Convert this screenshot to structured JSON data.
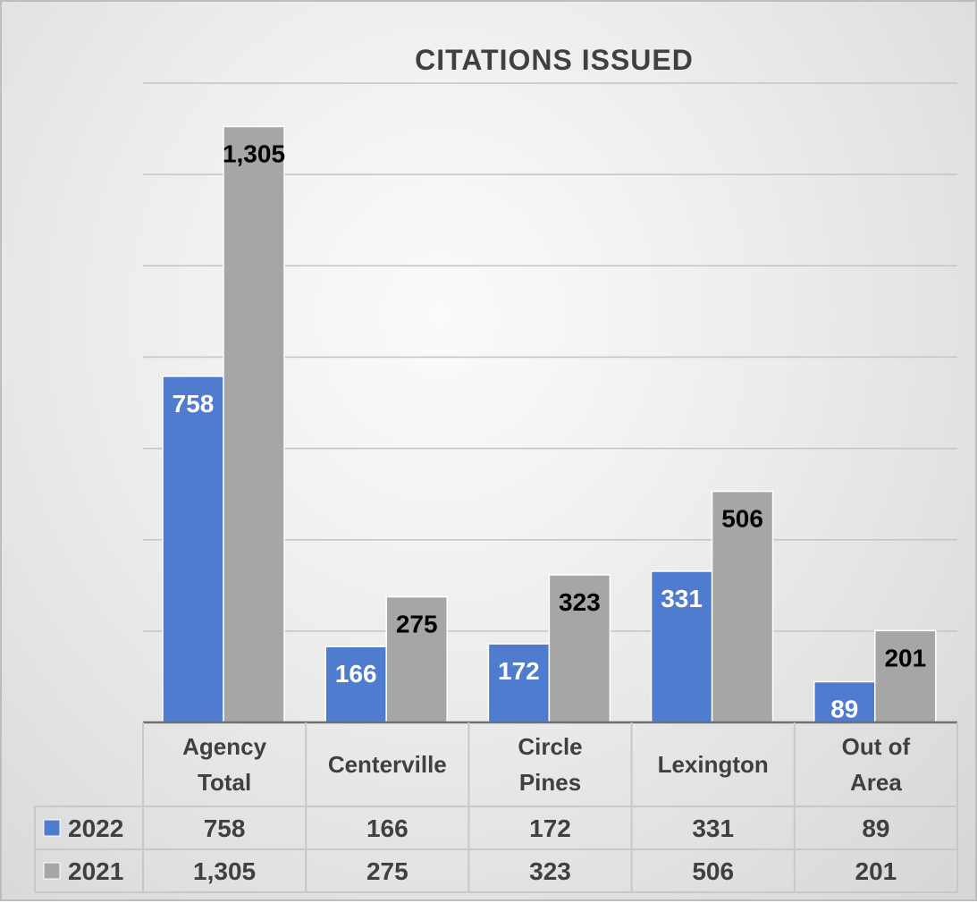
{
  "chart_data": {
    "type": "bar",
    "title": "CITATIONS ISSUED",
    "categories": [
      [
        "Agency",
        "Total"
      ],
      [
        "Centerville"
      ],
      [
        "Circle",
        "Pines"
      ],
      [
        "Lexington"
      ],
      [
        "Out of",
        "Area"
      ]
    ],
    "series": [
      {
        "name": "2022",
        "color": "#4f7ccf",
        "values": [
          758,
          166,
          172,
          331,
          89
        ],
        "labels": [
          "758",
          "166",
          "172",
          "331",
          "89"
        ],
        "label_color": "#ffffff"
      },
      {
        "name": "2021",
        "color": "#a6a6a6",
        "values": [
          1305,
          275,
          323,
          506,
          201
        ],
        "labels": [
          "1,305",
          "275",
          "323",
          "506",
          "201"
        ],
        "label_color": "#000000"
      }
    ],
    "ylim": [
      0,
      1400
    ],
    "gridlines": true,
    "data_table": true,
    "xlabel": "",
    "ylabel": ""
  }
}
